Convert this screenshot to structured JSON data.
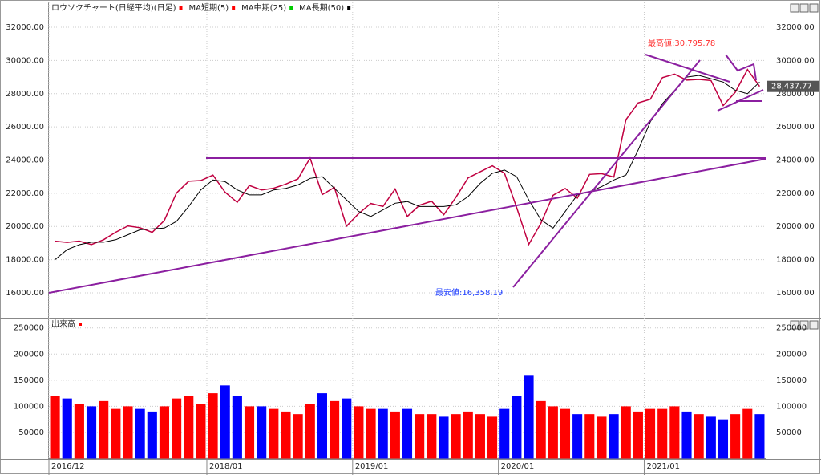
{
  "chart_data": {
    "type": "price-volume",
    "title": "ロウソクチャート(日経平均)(日足)",
    "title_color": "#ff0000",
    "indicators": [
      {
        "name": "MA短期(5)",
        "color": "#ff0000"
      },
      {
        "name": "MA中期(25)",
        "color": "#00cc00"
      },
      {
        "name": "MA長期(50)",
        "color": "#000000"
      }
    ],
    "categories": [
      "2016/12",
      null,
      null,
      null,
      null,
      null,
      null,
      null,
      null,
      null,
      null,
      null,
      null,
      "2018/01",
      null,
      null,
      null,
      null,
      null,
      null,
      null,
      null,
      null,
      null,
      null,
      "2019/01",
      null,
      null,
      null,
      null,
      null,
      null,
      null,
      null,
      null,
      null,
      null,
      "2020/01",
      null,
      null,
      null,
      null,
      null,
      null,
      null,
      null,
      null,
      null,
      null,
      "2021/01",
      null,
      null,
      null,
      null,
      null,
      null,
      null,
      null,
      null
    ],
    "series": [
      {
        "name": "ロウソクチャート(日経平均)(日足)",
        "color": "#c00040",
        "values": [
          19114,
          19041,
          19119,
          18909,
          19197,
          19650,
          20033,
          19925,
          19646,
          20356,
          22012,
          22725,
          22765,
          23098,
          22068,
          21454,
          22468,
          22202,
          22305,
          22554,
          22865,
          24120,
          21920,
          22351,
          20015,
          20773,
          21385,
          21206,
          22259,
          20601,
          21276,
          21522,
          20704,
          21756,
          22927,
          23294,
          23657,
          23205,
          21143,
          18917,
          20194,
          21878,
          22288,
          21710,
          23140,
          23185,
          22977,
          26434,
          27444,
          27663,
          28966,
          29179,
          28813,
          28860,
          28792,
          27284,
          28090,
          29453,
          28438
        ]
      },
      {
        "name": "MA長期(50)",
        "color": "#000000",
        "values": [
          18000,
          18600,
          18900,
          19050,
          19050,
          19200,
          19500,
          19800,
          19850,
          19900,
          20300,
          21200,
          22200,
          22800,
          22700,
          22200,
          21900,
          21900,
          22200,
          22300,
          22500,
          22900,
          23000,
          22300,
          21600,
          20900,
          20600,
          21000,
          21400,
          21500,
          21200,
          21200,
          21200,
          21300,
          21800,
          22600,
          23200,
          23400,
          23000,
          21600,
          20400,
          19900,
          20900,
          21900,
          22100,
          22400,
          22800,
          23100,
          24600,
          26300,
          27400,
          28200,
          29000,
          29100,
          28900,
          28700,
          28200,
          28000,
          28700
        ]
      }
    ],
    "ylim": [
      14500,
      33500
    ],
    "yticks": [
      {
        "value": 16000,
        "label": "16000.00"
      },
      {
        "value": 18000,
        "label": "18000.00"
      },
      {
        "value": 20000,
        "label": "20000.00"
      },
      {
        "value": 22000,
        "label": "22000.00"
      },
      {
        "value": 24000,
        "label": "24000.00"
      },
      {
        "value": 26000,
        "label": "26000.00"
      },
      {
        "value": 28000,
        "label": "28000.00"
      },
      {
        "value": 30000,
        "label": "30000.00"
      },
      {
        "value": 32000,
        "label": "32000.00"
      }
    ],
    "last_price": {
      "value": 28437.77,
      "label": "28,437.77"
    },
    "high_label": "最高値:30,795.78",
    "low_label": "最安値:16,358.19",
    "volume": {
      "title": "出来高",
      "up_color": "#ff0000",
      "down_color": "#0000ff",
      "values": [
        120000,
        115000,
        105000,
        100000,
        110000,
        95000,
        100000,
        95000,
        90000,
        100000,
        115000,
        120000,
        105000,
        125000,
        140000,
        120000,
        100000,
        100000,
        95000,
        90000,
        85000,
        105000,
        125000,
        110000,
        115000,
        100000,
        95000,
        95000,
        90000,
        95000,
        85000,
        85000,
        80000,
        85000,
        90000,
        85000,
        80000,
        95000,
        120000,
        160000,
        110000,
        100000,
        95000,
        85000,
        85000,
        80000,
        85000,
        100000,
        90000,
        95000,
        95000,
        100000,
        90000,
        85000,
        80000,
        75000,
        85000,
        95000,
        85000
      ],
      "ylim": [
        0,
        268000
      ],
      "yticks": [
        50000,
        100000,
        150000,
        200000,
        250000
      ]
    },
    "grid": true
  }
}
